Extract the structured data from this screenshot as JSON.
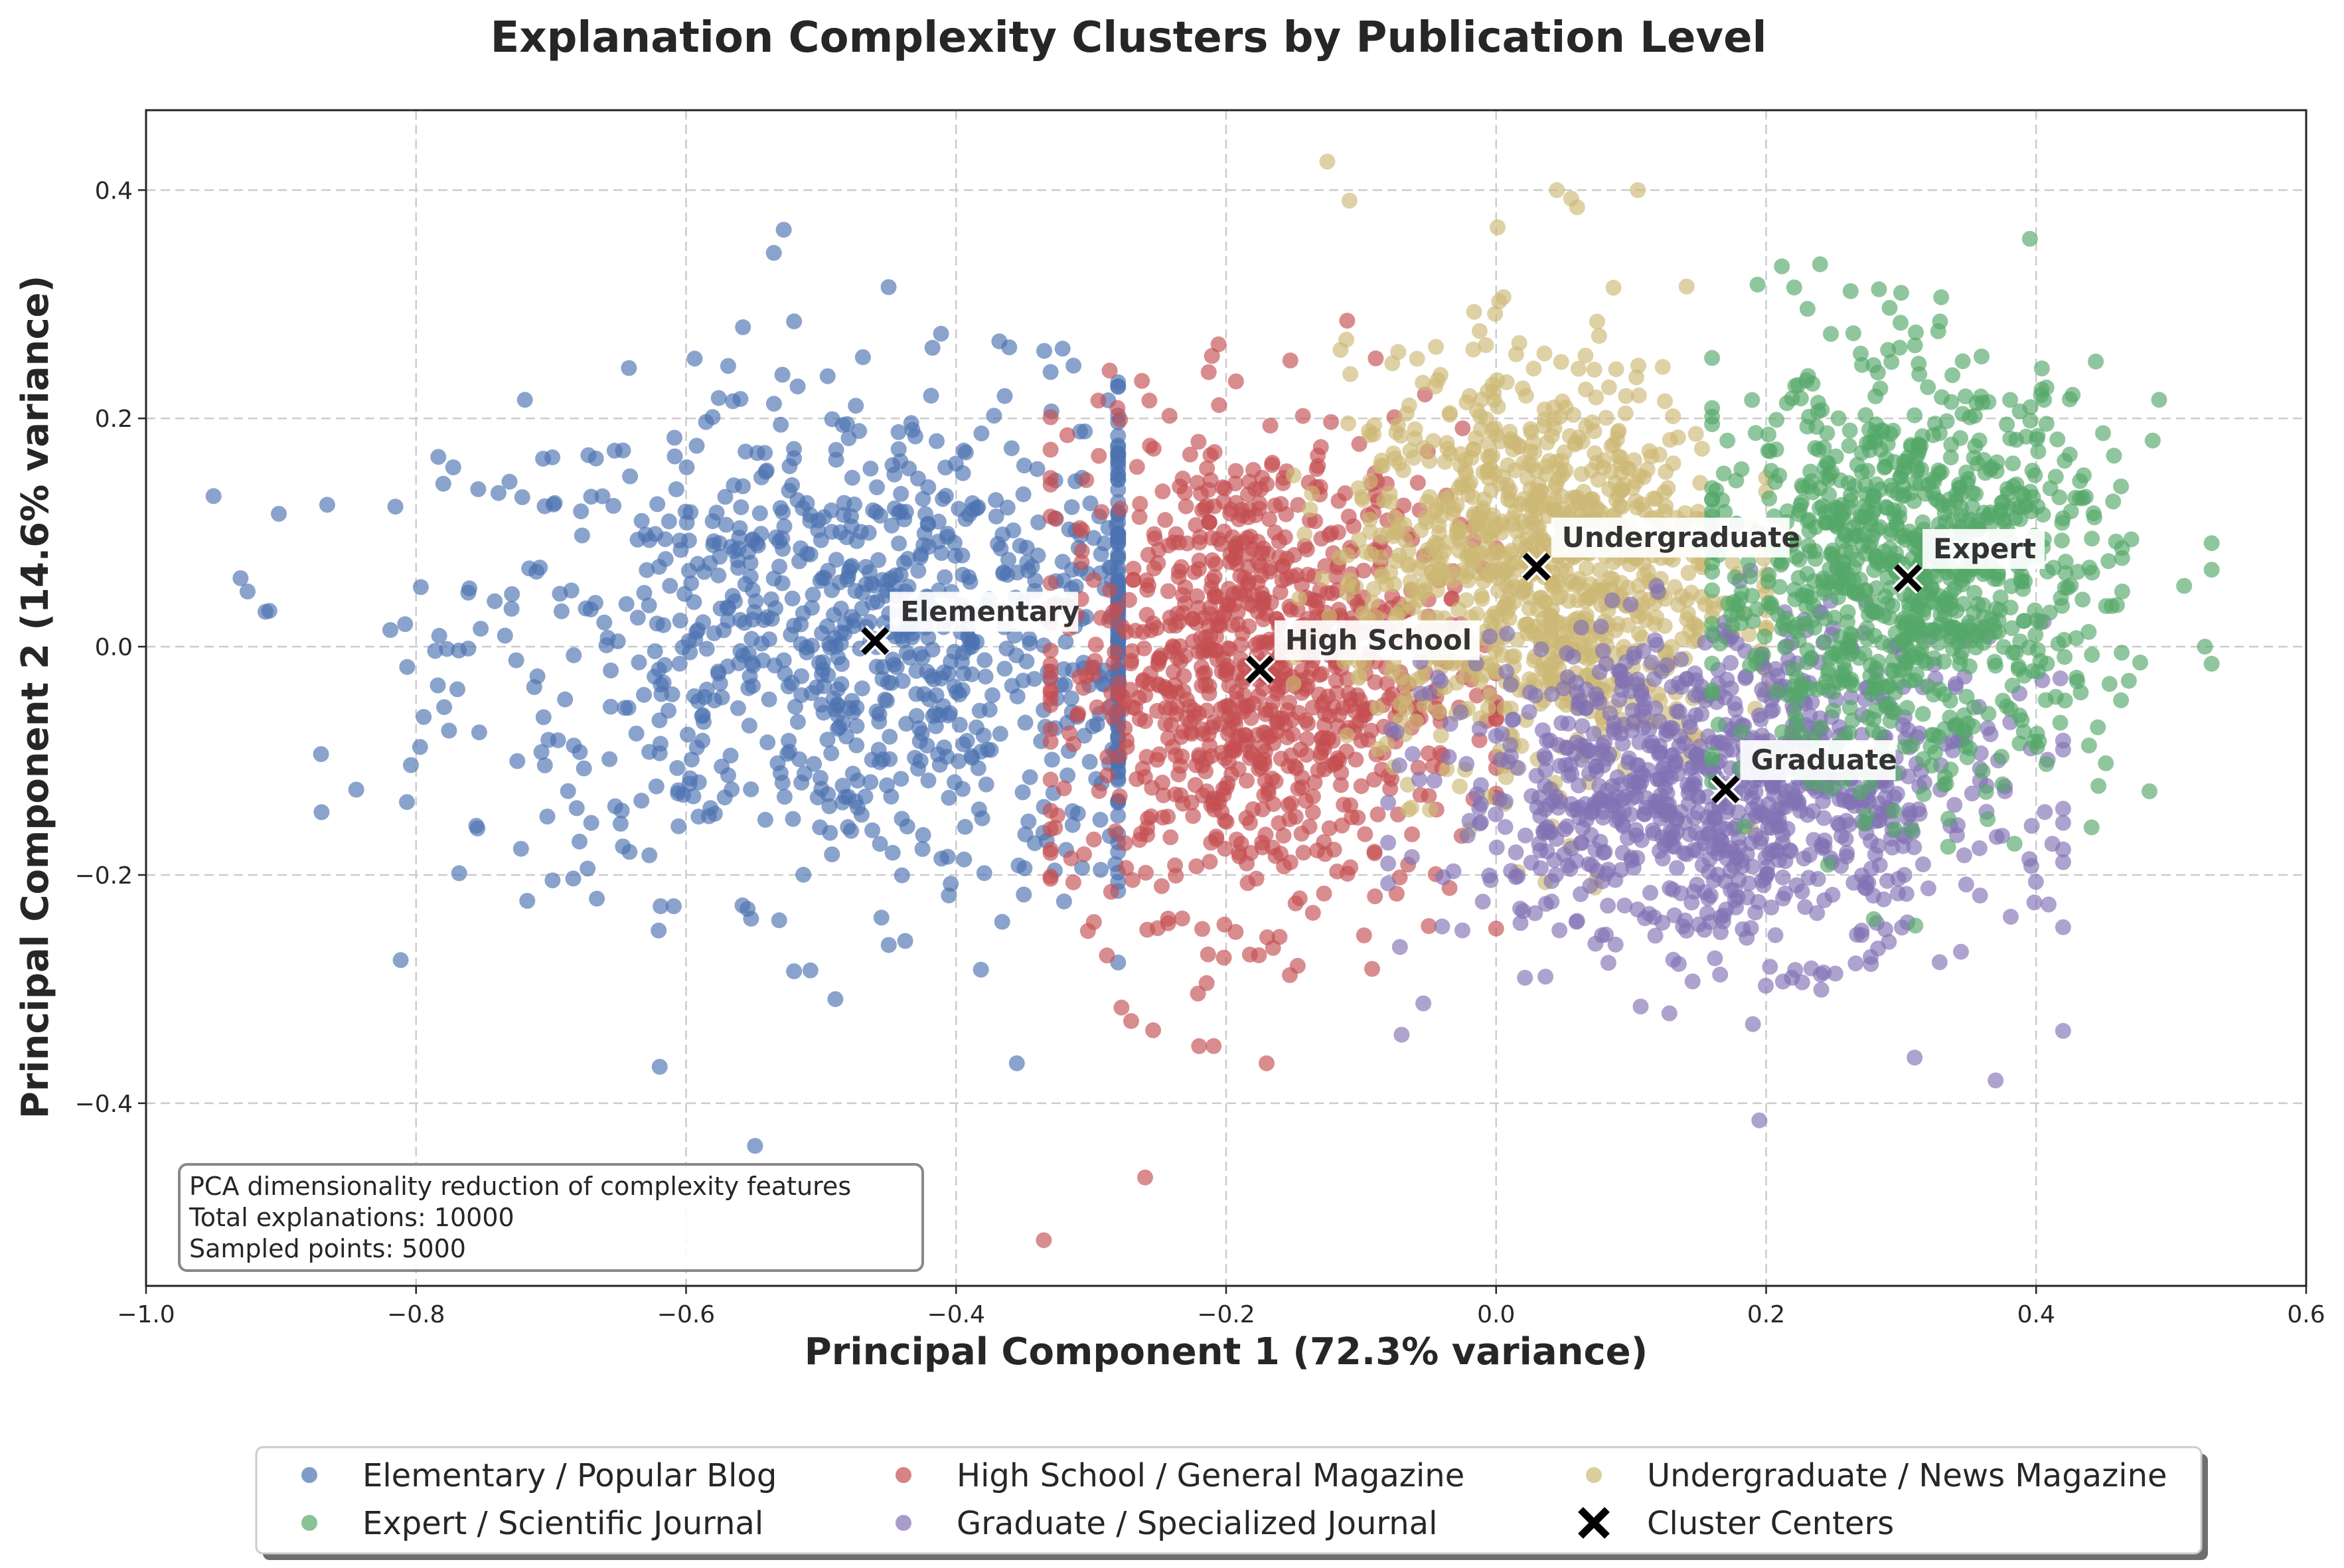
{
  "chart_data": {
    "type": "scatter",
    "title": "Explanation Complexity Clusters by Publication Level",
    "xlabel": "Principal Component 1 (72.3% variance)",
    "ylabel": "Principal Component 2 (14.6% variance)",
    "xlim": [
      -1.0,
      0.6
    ],
    "ylim": [
      -0.56,
      0.47
    ],
    "xticks": [
      -1.0,
      -0.8,
      -0.6,
      -0.4,
      -0.2,
      0.0,
      0.2,
      0.4,
      0.6
    ],
    "xtick_labels": [
      "−1.0",
      "−0.8",
      "−0.6",
      "−0.4",
      "−0.2",
      "0.0",
      "0.2",
      "0.4",
      "0.6"
    ],
    "yticks": [
      0.4,
      0.2,
      0.0,
      -0.2,
      -0.4
    ],
    "ytick_labels": [
      "0.4",
      "0.2",
      "0.0",
      "−0.2",
      "−0.4"
    ],
    "grid": true,
    "legend_position": "bottom-center",
    "series": [
      {
        "name": "Elementary / Popular Blog",
        "color": "#4c72b0",
        "center_label": "Elementary",
        "center": [
          -0.46,
          0.005
        ],
        "spread": [
          0.155,
          0.11
        ],
        "xrange": [
          -0.95,
          -0.28
        ],
        "count": 1000,
        "extremes": [
          [
            -0.93,
            0.06
          ],
          [
            -0.87,
            -0.145
          ],
          [
            -0.535,
            0.345
          ],
          [
            -0.45,
            0.315
          ],
          [
            -0.355,
            -0.365
          ],
          [
            -0.52,
            0.285
          ]
        ]
      },
      {
        "name": "High School / General Magazine",
        "color": "#c44e52",
        "center_label": "High School",
        "center": [
          -0.175,
          -0.02
        ],
        "spread": [
          0.075,
          0.105
        ],
        "xrange": [
          -0.33,
          0.0
        ],
        "count": 1000,
        "extremes": [
          [
            -0.335,
            -0.52
          ],
          [
            -0.26,
            -0.465
          ],
          [
            -0.17,
            -0.365
          ],
          [
            -0.22,
            -0.35
          ]
        ]
      },
      {
        "name": "Undergraduate / News Magazine",
        "color": "#ccb974",
        "center_label": "Undergraduate",
        "center": [
          0.03,
          0.07
        ],
        "spread": [
          0.07,
          0.09
        ],
        "xrange": [
          -0.15,
          0.2
        ],
        "count": 1000,
        "extremes": [
          [
            -0.125,
            0.425
          ],
          [
            0.045,
            0.4
          ],
          [
            0.105,
            0.4
          ],
          [
            0.06,
            0.385
          ]
        ]
      },
      {
        "name": "Graduate / Specialized Journal",
        "color": "#8172b3",
        "center_label": "Graduate",
        "center": [
          0.17,
          -0.125
        ],
        "spread": [
          0.1,
          0.07
        ],
        "xrange": [
          -0.08,
          0.42
        ],
        "count": 1000,
        "extremes": [
          [
            0.195,
            -0.415
          ],
          [
            0.37,
            -0.38
          ],
          [
            0.31,
            -0.36
          ],
          [
            -0.07,
            -0.34
          ]
        ]
      },
      {
        "name": "Expert / Scientific Journal",
        "color": "#55a868",
        "center_label": "Expert",
        "center": [
          0.305,
          0.06
        ],
        "spread": [
          0.075,
          0.09
        ],
        "xrange": [
          0.16,
          0.53
        ],
        "count": 1000,
        "extremes": [
          [
            0.53,
            -0.015
          ],
          [
            0.525,
            0.0
          ],
          [
            0.24,
            0.335
          ],
          [
            0.3,
            0.31
          ]
        ]
      }
    ],
    "cluster_centers_label": "Cluster Centers",
    "legend_order": [
      "Elementary / Popular Blog",
      "High School / General Magazine",
      "Undergraduate / News Magazine",
      "Expert / Scientific Journal",
      "Graduate / Specialized Journal",
      "Cluster Centers"
    ],
    "annotation": {
      "lines": [
        "PCA dimensionality reduction of complexity features",
        "Total explanations: 10000",
        "Sampled points: 5000"
      ]
    }
  }
}
